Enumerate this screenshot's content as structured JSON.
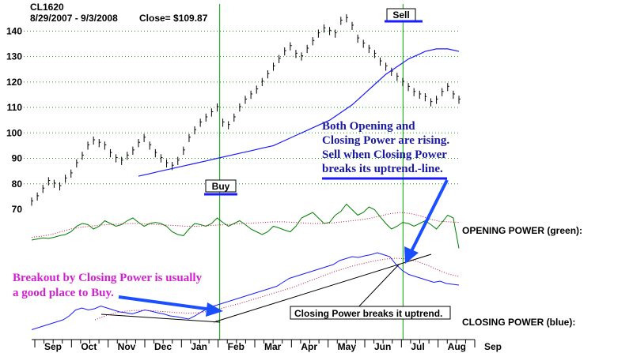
{
  "header": {
    "symbol": "CL1620",
    "date_range": "8/29/2007 - 9/3/2008",
    "close_label": "Close= $109.87"
  },
  "chart_data": {
    "type": "line",
    "ticker": "CL1620",
    "period": "8/29/2007 - 9/3/2008",
    "close": 109.87,
    "x_labels": [
      "Sep",
      "Oct",
      "Nov",
      "Dec",
      "Jan",
      "Feb",
      "Mar",
      "Apr",
      "May",
      "Jun",
      "Jul",
      "Aug",
      "Sep"
    ],
    "y_ticks": [
      70,
      80,
      90,
      100,
      110,
      120,
      130,
      140
    ],
    "ylim": [
      70,
      146
    ],
    "grid": true,
    "price_series": [
      73,
      75,
      78,
      81,
      80,
      79,
      82,
      84,
      88,
      91,
      95,
      97,
      96,
      95,
      92,
      90,
      89,
      91,
      93,
      96,
      98,
      95,
      92,
      90,
      88,
      87,
      89,
      93,
      98,
      101,
      104,
      106,
      108,
      110,
      104,
      103,
      106,
      110,
      113,
      115,
      117,
      120,
      123,
      126,
      129,
      132,
      134,
      131,
      130,
      133,
      136,
      139,
      141,
      140,
      139,
      144,
      145,
      142,
      137,
      135,
      133,
      131,
      128,
      126,
      124,
      122,
      120,
      118,
      116,
      115,
      114,
      112,
      113,
      116,
      118,
      115,
      113
    ],
    "moving_average": [
      [
        19,
        83
      ],
      [
        21,
        84
      ],
      [
        23,
        85
      ],
      [
        25,
        86
      ],
      [
        27,
        87
      ],
      [
        29,
        88
      ],
      [
        31,
        89
      ],
      [
        33,
        90
      ],
      [
        35,
        91
      ],
      [
        37,
        92
      ],
      [
        39,
        93
      ],
      [
        41,
        94
      ],
      [
        43,
        95
      ],
      [
        45,
        97
      ],
      [
        47,
        99
      ],
      [
        49,
        101
      ],
      [
        51,
        103
      ],
      [
        53,
        105
      ],
      [
        55,
        108
      ],
      [
        57,
        111
      ],
      [
        59,
        115
      ],
      [
        61,
        119
      ],
      [
        63,
        123
      ],
      [
        65,
        126
      ],
      [
        67,
        129
      ],
      [
        68,
        130
      ],
      [
        69,
        131
      ],
      [
        70,
        132
      ],
      [
        72,
        133
      ],
      [
        74,
        133
      ],
      [
        76,
        132
      ]
    ],
    "opening_power": [
      0.3,
      0.32,
      0.34,
      0.33,
      0.35,
      0.38,
      0.4,
      0.45,
      0.55,
      0.6,
      0.58,
      0.5,
      0.55,
      0.65,
      0.6,
      0.55,
      0.58,
      0.65,
      0.7,
      0.62,
      0.55,
      0.6,
      0.62,
      0.6,
      0.55,
      0.45,
      0.4,
      0.38,
      0.5,
      0.6,
      0.58,
      0.55,
      0.6,
      0.7,
      0.62,
      0.55,
      0.6,
      0.65,
      0.58,
      0.5,
      0.45,
      0.4,
      0.45,
      0.55,
      0.52,
      0.48,
      0.45,
      0.55,
      0.7,
      0.75,
      0.8,
      0.7,
      0.6,
      0.62,
      0.75,
      0.82,
      0.95,
      0.85,
      0.75,
      0.8,
      0.9,
      0.85,
      0.72,
      0.6,
      0.5,
      0.55,
      0.62,
      0.6,
      0.55,
      0.6,
      0.65,
      0.58,
      0.5,
      0.62,
      0.75,
      0.7,
      0.15
    ],
    "opening_power_ma": [
      0.35,
      0.37,
      0.4,
      0.45,
      0.5,
      0.53,
      0.55,
      0.57,
      0.58,
      0.59,
      0.6,
      0.6,
      0.59,
      0.58,
      0.57,
      0.56,
      0.55,
      0.55,
      0.56,
      0.57,
      0.58,
      0.59,
      0.6,
      0.61,
      0.62,
      0.63,
      0.63,
      0.62,
      0.61,
      0.6,
      0.6,
      0.61,
      0.63,
      0.65,
      0.67,
      0.7,
      0.74,
      0.78,
      0.8,
      0.78,
      0.74,
      0.68,
      0.64,
      0.63,
      0.62
    ],
    "closing_power": [
      0.05,
      0.1,
      0.15,
      0.2,
      0.25,
      0.3,
      0.4,
      0.55,
      0.6,
      0.55,
      0.58,
      0.65,
      0.6,
      0.55,
      0.5,
      0.48,
      0.45,
      0.5,
      0.55,
      0.52,
      0.48,
      0.45,
      0.4,
      0.38,
      0.35,
      0.32,
      0.4,
      0.5,
      0.58,
      0.65,
      0.7,
      0.75,
      0.8,
      0.85,
      0.9,
      0.95,
      1.0,
      1.05,
      1.1,
      1.15,
      1.25,
      1.35,
      1.4,
      1.45,
      1.5,
      1.55,
      1.6,
      1.65,
      1.7,
      1.8,
      1.85,
      1.9,
      1.88,
      1.92,
      1.95,
      2.0,
      1.95,
      1.9,
      1.7,
      1.55,
      1.45,
      1.4,
      1.35,
      1.3,
      1.25,
      1.28,
      1.22,
      1.2,
      1.18
    ],
    "closing_power_ma": [
      0.3,
      0.4,
      0.48,
      0.52,
      0.54,
      0.54,
      0.52,
      0.5,
      0.48,
      0.47,
      0.48,
      0.52,
      0.58,
      0.65,
      0.72,
      0.8,
      0.88,
      0.96,
      1.04,
      1.12,
      1.22,
      1.32,
      1.42,
      1.52,
      1.6,
      1.68,
      1.74,
      1.8,
      1.84,
      1.86,
      1.84,
      1.78,
      1.68,
      1.56,
      1.46,
      1.4
    ],
    "signals": [
      {
        "label": "Buy",
        "month": "Feb"
      },
      {
        "label": "Sell",
        "month": "Jul"
      }
    ]
  },
  "labels": {
    "opening_power": "OPENING POWER (green):",
    "closing_power": "CLOSING POWER (blue):",
    "buy": "Buy",
    "sell": "Sell",
    "closing_breaks": "Closing Power breaks it uptrend."
  },
  "annotations": {
    "rising": [
      "Both Opening and",
      "Closing Power are rising.",
      "Sell when Closing Power",
      "breaks its uptrend.-line."
    ],
    "breakout": [
      "Breakout by Closing Power is usually",
      "a good place to Buy."
    ]
  },
  "colors": {
    "price": "#000000",
    "ma": "#1a1aff",
    "opening": "#008000",
    "closing": "#1a1aff",
    "ma_dotted": "#c01040",
    "signal_line": "#00a000",
    "annotation_blue": "#1a1aa0",
    "annotation_magenta": "#d020d0",
    "arrow": "#1a4fff"
  }
}
